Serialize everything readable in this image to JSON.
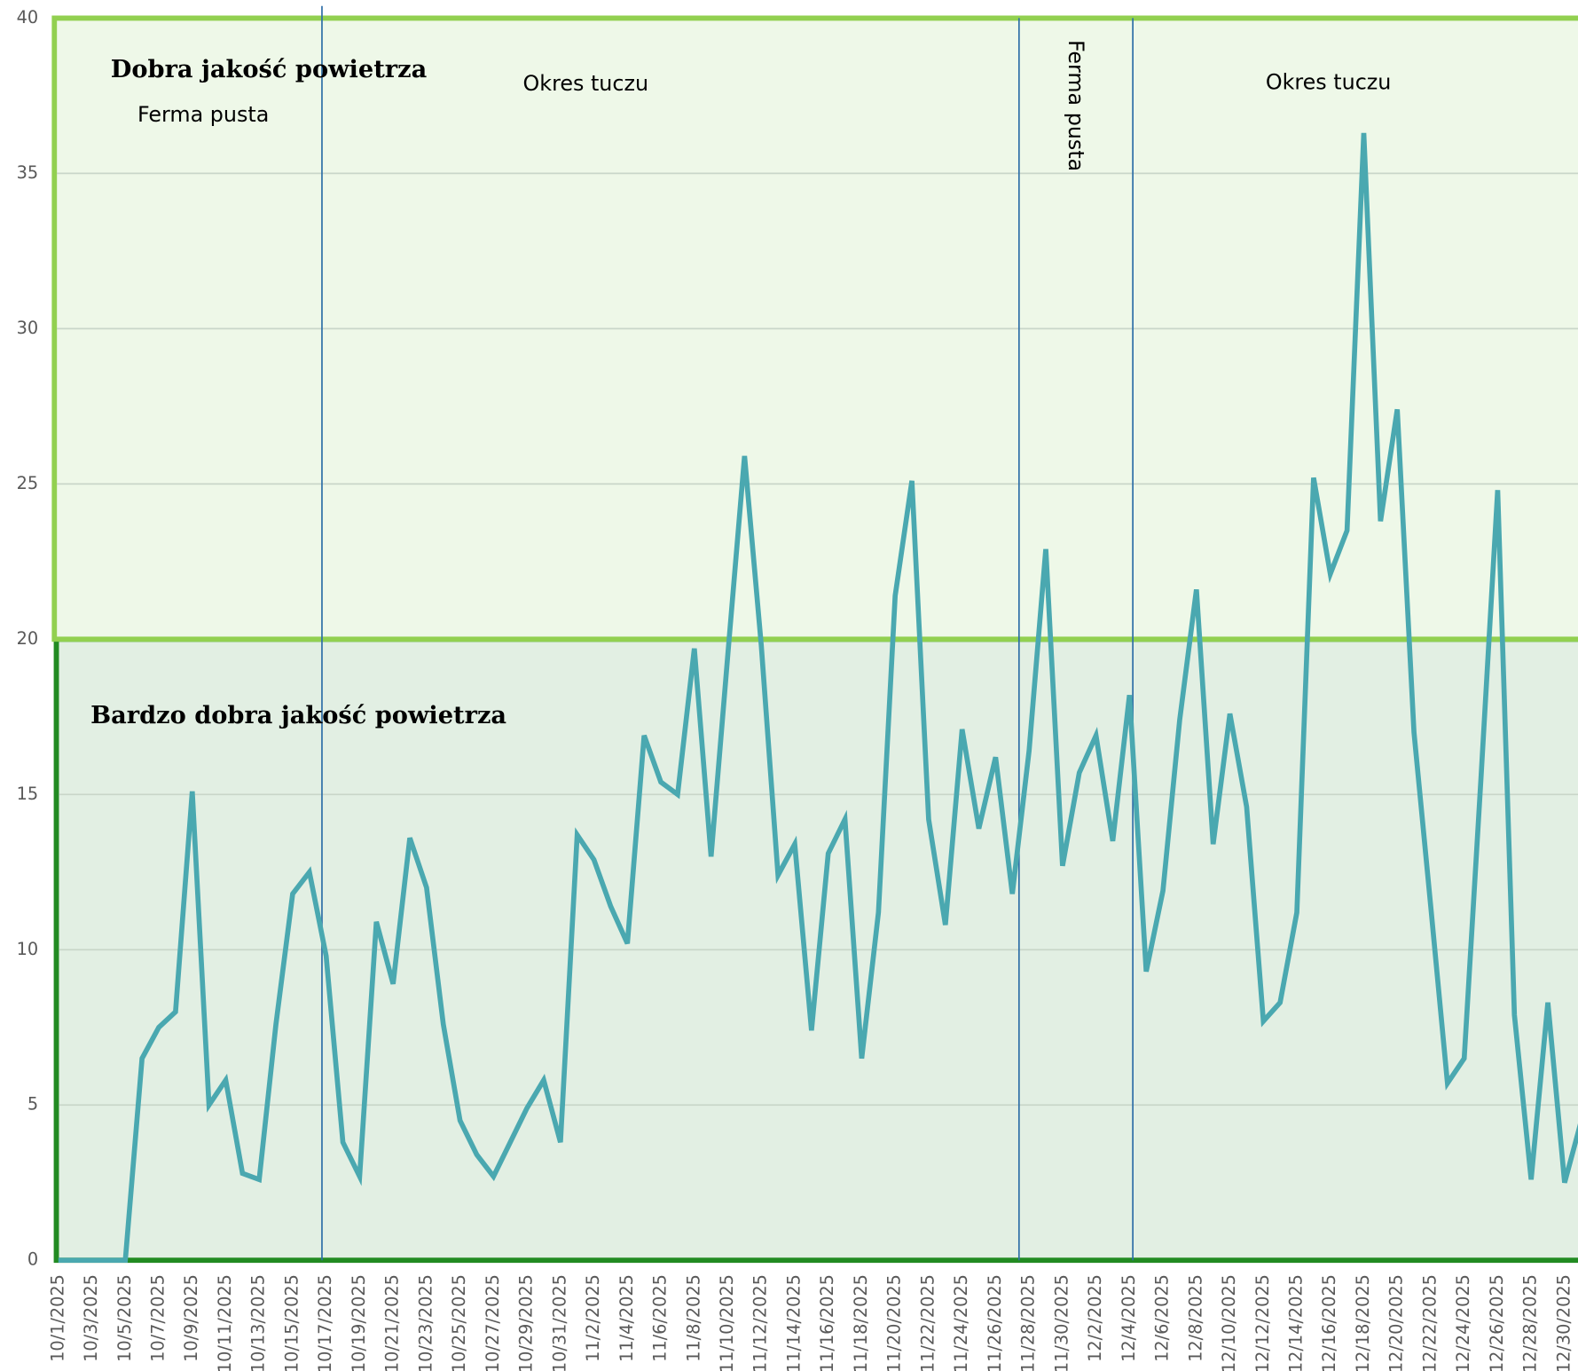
{
  "chart_data": {
    "type": "line",
    "categories": [
      "10/1/2025",
      null,
      "10/3/2025",
      null,
      "10/5/2025",
      null,
      "10/7/2025",
      null,
      "10/9/2025",
      null,
      "10/11/2025",
      null,
      "10/13/2025",
      null,
      "10/15/2025",
      null,
      "10/17/2025",
      null,
      "10/19/2025",
      null,
      "10/21/2025",
      null,
      "10/23/2025",
      null,
      "10/25/2025",
      null,
      "10/27/2025",
      null,
      "10/29/2025",
      null,
      "10/31/2025",
      null,
      "11/2/2025",
      null,
      "11/4/2025",
      null,
      "11/6/2025",
      null,
      "11/8/2025",
      null,
      "11/10/2025",
      null,
      "11/12/2025",
      null,
      "11/14/2025",
      null,
      "11/16/2025",
      null,
      "11/18/2025",
      null,
      "11/20/2025",
      null,
      "11/22/2025",
      null,
      "11/24/2025",
      null,
      "11/26/2025",
      null,
      "11/28/2025",
      null,
      "11/30/2025",
      null,
      "12/2/2025",
      null,
      "12/4/2025",
      null,
      "12/6/2025",
      null,
      "12/8/2025",
      null,
      "12/10/2025",
      null,
      "12/12/2025",
      null,
      "12/14/2025",
      null,
      "12/16/2025",
      null,
      "12/18/2025",
      null,
      "12/20/2025",
      null,
      "12/22/2025",
      null,
      "12/24/2025",
      null,
      "12/26/2025",
      null,
      "12/28/2025",
      null,
      "12/30/2025",
      null
    ],
    "series": [
      {
        "color": "#4aa8b0",
        "values": [
          0,
          0,
          0,
          0,
          0,
          6.5,
          7.5,
          8.0,
          15.1,
          5.0,
          5.8,
          2.8,
          2.6,
          7.6,
          11.8,
          12.5,
          9.8,
          3.8,
          2.7,
          10.9,
          8.9,
          13.6,
          12.0,
          7.6,
          4.5,
          3.4,
          2.7,
          3.8,
          4.9,
          5.8,
          3.8,
          13.7,
          12.9,
          11.4,
          10.2,
          16.9,
          15.4,
          15.0,
          19.7,
          13.0,
          19.5,
          25.9,
          19.8,
          12.4,
          13.4,
          7.4,
          13.1,
          14.2,
          6.5,
          11.2,
          21.4,
          25.1,
          14.2,
          10.8,
          17.1,
          13.9,
          16.2,
          11.8,
          16.4,
          22.9,
          12.7,
          15.7,
          16.9,
          13.5,
          18.2,
          9.3,
          11.9,
          17.4,
          21.6,
          13.4,
          17.6,
          14.6,
          7.7,
          8.3,
          11.2,
          25.2,
          22.1,
          23.5,
          36.3,
          23.8,
          27.4,
          17.0,
          11.4,
          5.7,
          6.5,
          15.5,
          24.8,
          7.9,
          2.6,
          8.3,
          2.5,
          4.5
        ]
      }
    ],
    "ylim": [
      0,
      40
    ],
    "yticks": [
      0,
      5,
      10,
      15,
      20,
      25,
      30,
      35,
      40
    ],
    "grid": true,
    "zones": [
      {
        "label": "Bardzo dobra jakość powietrza",
        "range": [
          0,
          20
        ],
        "fill": "#e2efe3",
        "border": "#228b22"
      },
      {
        "label": "Dobra jakość powietrza",
        "range": [
          20,
          40
        ],
        "fill": "#eef8e8",
        "border": "#92d050"
      }
    ],
    "annotations": [
      "Ferma pusta",
      "Okres tuczu",
      "Ferma pusta",
      "Okres tuczu"
    ]
  }
}
